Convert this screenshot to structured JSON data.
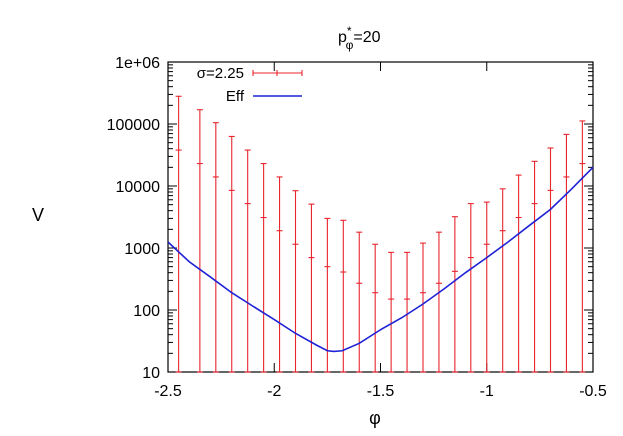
{
  "chart_data": {
    "type": "scatter",
    "title": "p",
    "title_super": "*",
    "title_sub": "φ",
    "title_value": "=20",
    "xlabel": "φ",
    "ylabel": "V",
    "xlim": [
      -2.5,
      -0.5
    ],
    "ylim": [
      10,
      1000000
    ],
    "y_scale": "log",
    "grid": false,
    "legend_position": "top-left",
    "x_ticks": [
      -2.5,
      -2,
      -1.5,
      -1,
      -0.5
    ],
    "x_tick_labels": [
      "-2.5",
      "-2",
      "-1.5",
      "-1",
      "-0.5"
    ],
    "y_ticks": [
      10,
      100,
      1000,
      10000,
      100000,
      1000000
    ],
    "y_tick_labels": [
      "10",
      "100",
      "1000",
      "10000",
      "100000",
      "1e+06"
    ],
    "series": [
      {
        "name": "σ=2.25",
        "kind": "errorbars",
        "color": "#e8262d",
        "x": [
          -2.45,
          -2.35,
          -2.275,
          -2.2,
          -2.125,
          -2.05,
          -1.975,
          -1.9,
          -1.825,
          -1.75,
          -1.675,
          -1.6,
          -1.525,
          -1.45,
          -1.375,
          -1.3,
          -1.225,
          -1.15,
          -1.075,
          -1.0,
          -0.925,
          -0.85,
          -0.775,
          -0.7,
          -0.625,
          -0.55
        ],
        "y": [
          38000,
          23000,
          14000,
          8500,
          5200,
          3100,
          1900,
          1150,
          700,
          500,
          410,
          270,
          190,
          150,
          150,
          190,
          270,
          420,
          700,
          1150,
          1900,
          3100,
          5200,
          8500,
          14000,
          23000
        ],
        "y_low": [
          10,
          10,
          10,
          10,
          10,
          10,
          10,
          10,
          10,
          10,
          10,
          10,
          10,
          10,
          10,
          10,
          10,
          10,
          10,
          10,
          10,
          10,
          10,
          10,
          10,
          10
        ],
        "y_high": [
          280000,
          170000,
          105000,
          63000,
          38000,
          23000,
          14000,
          8400,
          5100,
          3000,
          2800,
          1800,
          1150,
          850,
          850,
          1200,
          1800,
          3200,
          5200,
          5500,
          9000,
          15000,
          25000,
          41000,
          68000,
          112000
        ]
      },
      {
        "name": "Eff",
        "kind": "line",
        "color": "#1f22d6",
        "x": [
          -2.5,
          -2.4,
          -2.3,
          -2.2,
          -2.1,
          -2.0,
          -1.9,
          -1.8,
          -1.75,
          -1.72,
          -1.68,
          -1.6,
          -1.5,
          -1.4,
          -1.3,
          -1.2,
          -1.1,
          -1.0,
          -0.9,
          -0.8,
          -0.7,
          -0.6,
          -0.5
        ],
        "y": [
          1250,
          600,
          340,
          190,
          115,
          70,
          42,
          27,
          22,
          21.5,
          22,
          29,
          48,
          75,
          125,
          220,
          400,
          700,
          1250,
          2300,
          4200,
          9000,
          20000
        ]
      }
    ]
  }
}
